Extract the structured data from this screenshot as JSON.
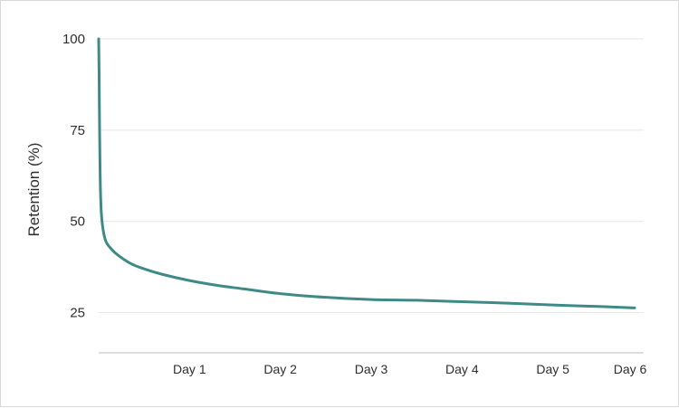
{
  "chart_data": {
    "type": "line",
    "title": "",
    "xlabel": "",
    "ylabel": "Retention (%)",
    "xlim": [
      0,
      6
    ],
    "ylim": [
      14,
      100
    ],
    "x_ticks": [
      1,
      2,
      3,
      4,
      5,
      6
    ],
    "x_tick_labels": [
      "Day 1",
      "Day 2",
      "Day 3",
      "Day 4",
      "Day 5",
      "Day 6"
    ],
    "y_ticks": [
      25,
      50,
      75,
      100
    ],
    "y_tick_labels": [
      "25",
      "50",
      "75",
      "100"
    ],
    "grid": true,
    "legend": "none",
    "color": "#3f8a86",
    "series": [
      {
        "x": [
          0,
          0.005,
          0.01,
          0.015,
          0.02,
          0.03,
          0.05,
          0.08,
          0.12,
          0.2,
          0.35,
          0.5,
          0.7,
          1.0,
          1.3,
          1.6,
          2.0,
          2.5,
          3.0,
          3.5,
          4.0,
          4.5,
          5.0,
          5.5,
          5.9
        ],
        "values": [
          100,
          90,
          75,
          65,
          58,
          52,
          47.5,
          44.5,
          43,
          41,
          38.5,
          37,
          35.5,
          33.8,
          32.5,
          31.5,
          30.2,
          29.2,
          28.6,
          28.4,
          28.0,
          27.6,
          27.1,
          26.7,
          26.3
        ]
      }
    ]
  }
}
